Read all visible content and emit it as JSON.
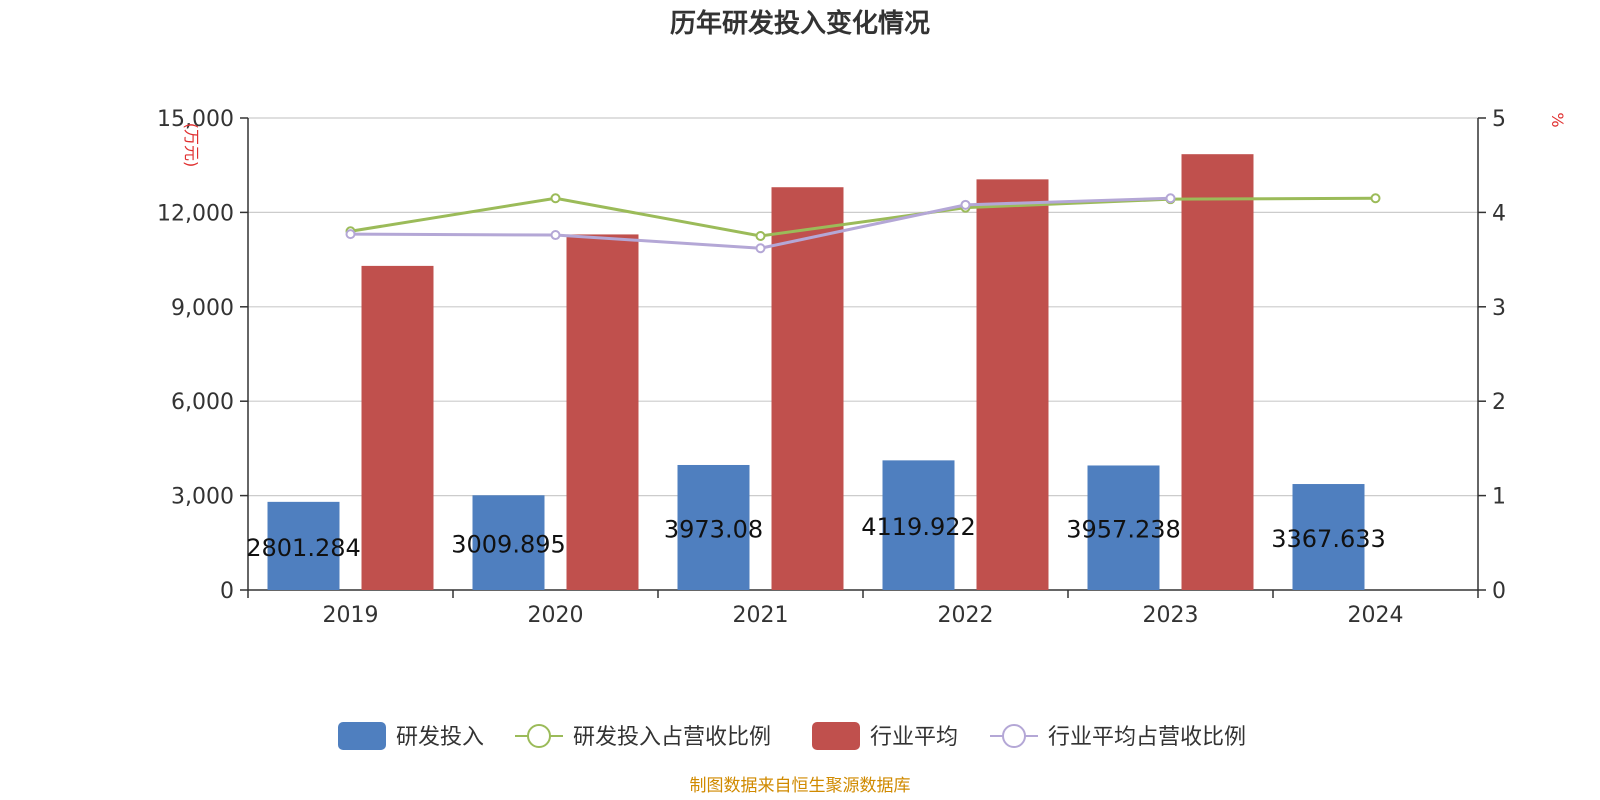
{
  "chart_data": {
    "type": "bar",
    "title": "历年研发投入变化情况",
    "categories": [
      "2019",
      "2020",
      "2021",
      "2022",
      "2023",
      "2024"
    ],
    "left_axis": {
      "unit": "(万元)",
      "ylim": [
        0,
        15000
      ],
      "ticks": [
        "0",
        "3,000",
        "6,000",
        "9,000",
        "12,000",
        "15,000"
      ],
      "tick_values": [
        0,
        3000,
        6000,
        9000,
        12000,
        15000
      ]
    },
    "right_axis": {
      "unit": "%",
      "ylim": [
        0,
        5
      ],
      "ticks": [
        "0",
        "1",
        "2",
        "3",
        "4",
        "5"
      ],
      "tick_values": [
        0,
        1,
        2,
        3,
        4,
        5
      ]
    },
    "grid": true,
    "legend_position": "bottom",
    "series": [
      {
        "name": "研发投入",
        "kind": "bar",
        "axis": "left",
        "color": "#4f7fbf",
        "values": [
          2801.284,
          3009.895,
          3973.08,
          4119.922,
          3957.238,
          3367.633
        ],
        "labels": [
          "2801.284",
          "3009.895",
          "3973.08",
          "4119.922",
          "3957.238",
          "3367.633"
        ]
      },
      {
        "name": "研发投入占营收比例",
        "kind": "line",
        "axis": "right",
        "color": "#9bbb59",
        "values": [
          3.8,
          4.15,
          3.75,
          4.05,
          4.14,
          4.15
        ]
      },
      {
        "name": "行业平均",
        "kind": "bar",
        "axis": "left",
        "color": "#c0504d",
        "values": [
          10300,
          11300,
          12800,
          13050,
          13850,
          null
        ]
      },
      {
        "name": "行业平均占营收比例",
        "kind": "line",
        "axis": "right",
        "color": "#b4a7d6",
        "values": [
          3.77,
          3.76,
          3.62,
          4.08,
          4.15,
          null
        ]
      }
    ]
  },
  "source": "制图数据来自恒生聚源数据库",
  "colors": {
    "unit_label": "#e03030",
    "source": "#d08a00",
    "grid": "#cccccc",
    "axis": "#333333"
  }
}
